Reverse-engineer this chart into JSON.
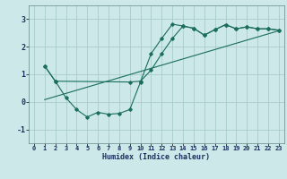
{
  "xlabel": "Humidex (Indice chaleur)",
  "bg_color": "#cce8e8",
  "grid_color": "#aacccc",
  "line_color": "#1a6e5a",
  "xlim": [
    -0.5,
    23.5
  ],
  "ylim": [
    -1.5,
    3.5
  ],
  "yticks": [
    -1,
    0,
    1,
    2,
    3
  ],
  "xticks": [
    0,
    1,
    2,
    3,
    4,
    5,
    6,
    7,
    8,
    9,
    10,
    11,
    12,
    13,
    14,
    15,
    16,
    17,
    18,
    19,
    20,
    21,
    22,
    23
  ],
  "line1_x": [
    1,
    2,
    3,
    4,
    5,
    6,
    7,
    8,
    9,
    10,
    11,
    12,
    13,
    14,
    15,
    16,
    17,
    18,
    19,
    20,
    21,
    22,
    23
  ],
  "line1_y": [
    1.3,
    0.75,
    0.15,
    -0.28,
    -0.55,
    -0.38,
    -0.45,
    -0.42,
    -0.28,
    0.72,
    1.75,
    2.3,
    2.82,
    2.75,
    2.67,
    2.42,
    2.62,
    2.8,
    2.65,
    2.72,
    2.65,
    2.65,
    2.6
  ],
  "line2_x": [
    1,
    2,
    9,
    10,
    11,
    12,
    13,
    14,
    15,
    16,
    17,
    18,
    19,
    20,
    21,
    22,
    23
  ],
  "line2_y": [
    1.3,
    0.75,
    0.72,
    0.75,
    1.15,
    1.75,
    2.3,
    2.75,
    2.67,
    2.42,
    2.62,
    2.8,
    2.65,
    2.72,
    2.65,
    2.65,
    2.6
  ],
  "line3_x": [
    1,
    23
  ],
  "line3_y": [
    0.08,
    2.58
  ]
}
